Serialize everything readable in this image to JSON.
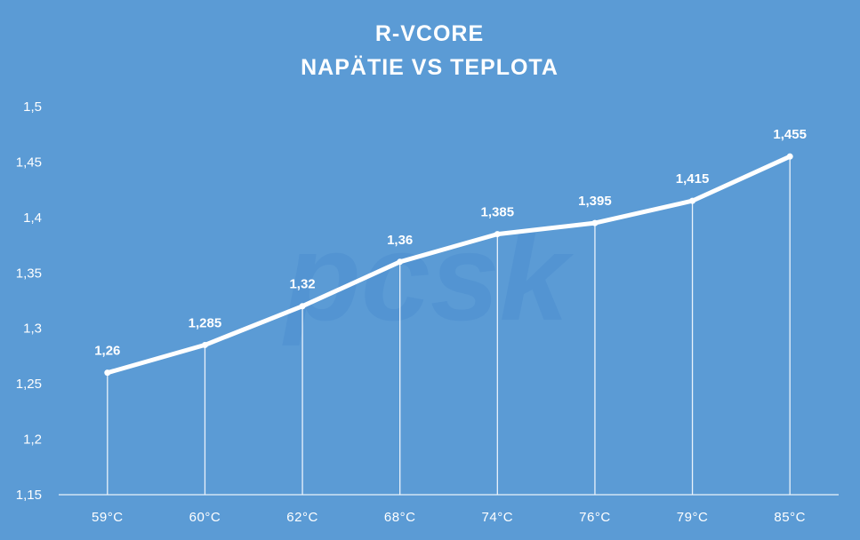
{
  "chart_data": {
    "type": "line",
    "title": "R-VCORE",
    "subtitle": "NAPÄTIE VS TEPLOTA",
    "categories": [
      "59°C",
      "60°C",
      "62°C",
      "68°C",
      "74°C",
      "76°C",
      "79°C",
      "85°C"
    ],
    "series": [
      {
        "values": [
          1.26,
          1.285,
          1.32,
          1.36,
          1.385,
          1.395,
          1.415,
          1.455
        ]
      }
    ],
    "data_labels": [
      "1,26",
      "1,285",
      "1,32",
      "1,36",
      "1,385",
      "1,395",
      "1,415",
      "1,455"
    ],
    "y_ticks": [
      "1,15",
      "1,2",
      "1,25",
      "1,3",
      "1,35",
      "1,4",
      "1,45",
      "1,5"
    ],
    "ylim": [
      1.15,
      1.5
    ],
    "xlabel": "",
    "ylabel": "",
    "grid": false,
    "drop_lines": true,
    "legend": "none",
    "watermark": "pcsk",
    "colors": {
      "background": "#5b9bd5",
      "line": "#ffffff",
      "text": "#ffffff",
      "watermark": "#4d8fd0"
    }
  }
}
